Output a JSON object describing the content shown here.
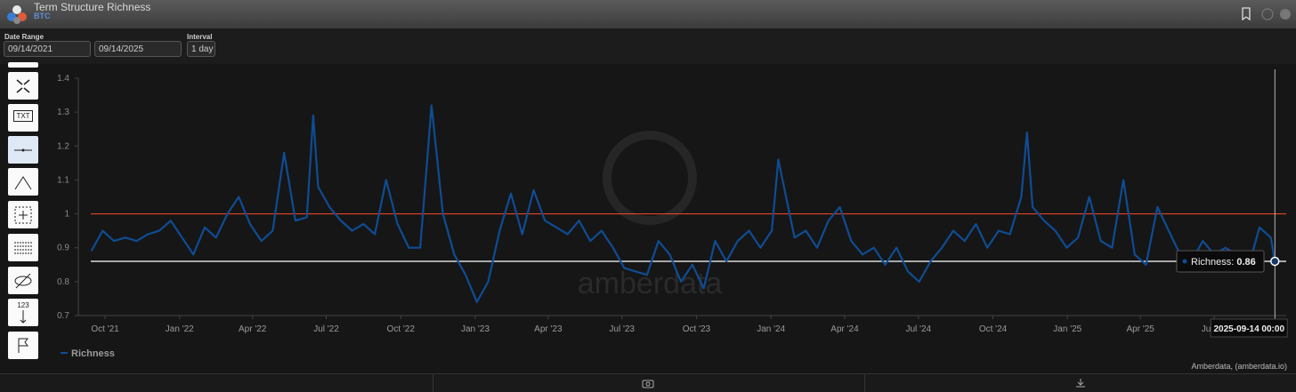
{
  "header": {
    "title": "Term Structure Richness",
    "subtitle": "BTC"
  },
  "controls": {
    "date_range_label": "Date Range",
    "start_date": "09/14/2021",
    "end_date": "09/14/2025",
    "interval_label": "Interval",
    "interval": "1 day"
  },
  "toolbar": {
    "text_tool": "TXT",
    "number_tool": "123"
  },
  "chart_data": {
    "type": "line",
    "x": [
      "2021-09-14",
      "2021-09-28",
      "2021-10-12",
      "2021-10-26",
      "2021-11-09",
      "2021-11-23",
      "2021-12-07",
      "2021-12-21",
      "2022-01-04",
      "2022-01-18",
      "2022-02-01",
      "2022-02-15",
      "2022-03-01",
      "2022-03-15",
      "2022-03-29",
      "2022-04-12",
      "2022-04-26",
      "2022-05-10",
      "2022-05-24",
      "2022-06-07",
      "2022-06-15",
      "2022-06-21",
      "2022-07-05",
      "2022-07-19",
      "2022-08-02",
      "2022-08-16",
      "2022-08-30",
      "2022-09-13",
      "2022-09-27",
      "2022-10-11",
      "2022-10-25",
      "2022-11-08",
      "2022-11-22",
      "2022-12-06",
      "2022-12-20",
      "2023-01-03",
      "2023-01-17",
      "2023-01-31",
      "2023-02-14",
      "2023-02-28",
      "2023-03-14",
      "2023-03-28",
      "2023-04-11",
      "2023-04-25",
      "2023-05-09",
      "2023-05-23",
      "2023-06-06",
      "2023-06-20",
      "2023-07-04",
      "2023-07-18",
      "2023-08-01",
      "2023-08-15",
      "2023-08-29",
      "2023-09-12",
      "2023-09-26",
      "2023-10-10",
      "2023-10-24",
      "2023-11-07",
      "2023-11-21",
      "2023-12-05",
      "2023-12-19",
      "2024-01-02",
      "2024-01-10",
      "2024-01-30",
      "2024-02-13",
      "2024-02-27",
      "2024-03-12",
      "2024-03-26",
      "2024-04-09",
      "2024-04-23",
      "2024-05-07",
      "2024-05-21",
      "2024-06-04",
      "2024-06-18",
      "2024-07-02",
      "2024-07-16",
      "2024-07-30",
      "2024-08-13",
      "2024-08-27",
      "2024-09-10",
      "2024-09-24",
      "2024-10-08",
      "2024-10-22",
      "2024-11-05",
      "2024-11-12",
      "2024-11-19",
      "2024-12-03",
      "2024-12-17",
      "2024-12-31",
      "2025-01-14",
      "2025-01-28",
      "2025-02-11",
      "2025-02-25",
      "2025-03-11",
      "2025-03-25",
      "2025-04-08",
      "2025-04-22",
      "2025-05-06",
      "2025-05-20",
      "2025-06-03",
      "2025-06-17",
      "2025-07-01",
      "2025-07-15",
      "2025-07-29",
      "2025-08-12",
      "2025-08-26",
      "2025-09-09",
      "2025-09-14"
    ],
    "series": [
      {
        "name": "Richness",
        "color": "#0f4c94",
        "values": [
          0.89,
          0.95,
          0.92,
          0.93,
          0.92,
          0.94,
          0.95,
          0.98,
          0.93,
          0.88,
          0.96,
          0.93,
          1.0,
          1.05,
          0.97,
          0.92,
          0.95,
          1.18,
          0.98,
          0.99,
          1.29,
          1.08,
          1.02,
          0.98,
          0.95,
          0.97,
          0.94,
          1.1,
          0.97,
          0.9,
          0.9,
          1.32,
          1.0,
          0.88,
          0.82,
          0.74,
          0.8,
          0.95,
          1.06,
          0.94,
          1.07,
          0.98,
          0.96,
          0.94,
          0.98,
          0.92,
          0.95,
          0.9,
          0.84,
          0.83,
          0.82,
          0.92,
          0.88,
          0.8,
          0.85,
          0.78,
          0.92,
          0.86,
          0.92,
          0.95,
          0.9,
          0.95,
          1.16,
          0.93,
          0.95,
          0.9,
          0.98,
          1.02,
          0.92,
          0.88,
          0.9,
          0.85,
          0.9,
          0.83,
          0.8,
          0.86,
          0.9,
          0.95,
          0.92,
          0.97,
          0.9,
          0.95,
          0.94,
          1.05,
          1.24,
          1.02,
          0.98,
          0.95,
          0.9,
          0.93,
          1.05,
          0.92,
          0.9,
          1.1,
          0.88,
          0.85,
          1.02,
          0.95,
          0.88,
          0.86,
          0.92,
          0.88,
          0.9,
          0.88,
          0.84,
          0.96,
          0.93,
          0.86
        ]
      }
    ],
    "xlim": [
      "2021-08-29",
      "2025-09-28"
    ],
    "xticks": [
      {
        "value": "2021-10-01",
        "label": "Oct '21"
      },
      {
        "value": "2022-01-01",
        "label": "Jan '22"
      },
      {
        "value": "2022-04-01",
        "label": "Apr '22"
      },
      {
        "value": "2022-07-01",
        "label": "Jul '22"
      },
      {
        "value": "2022-10-01",
        "label": "Oct '22"
      },
      {
        "value": "2023-01-01",
        "label": "Jan '23"
      },
      {
        "value": "2023-04-01",
        "label": "Apr '23"
      },
      {
        "value": "2023-07-01",
        "label": "Jul '23"
      },
      {
        "value": "2023-10-01",
        "label": "Oct '23"
      },
      {
        "value": "2024-01-01",
        "label": "Jan '24"
      },
      {
        "value": "2024-04-01",
        "label": "Apr '24"
      },
      {
        "value": "2024-07-01",
        "label": "Jul '24"
      },
      {
        "value": "2024-10-01",
        "label": "Oct '24"
      },
      {
        "value": "2025-01-01",
        "label": "Jan '25"
      },
      {
        "value": "2025-04-01",
        "label": "Apr '25"
      },
      {
        "value": "2025-07-01",
        "label": "Jul '25"
      }
    ],
    "ylim": [
      0.7,
      1.4
    ],
    "yticks": [
      0.7,
      0.8,
      0.9,
      1,
      1.1,
      1.2,
      1.3,
      1.4
    ],
    "hlines": [
      {
        "value": 1,
        "color": "#e2432a"
      },
      {
        "value": 0.86,
        "color": "#ffffff"
      }
    ],
    "tooltip_label": "Richness:",
    "crosshair_label": "2025-09-14 00:00",
    "watermark": "amberdata",
    "credit": "Amberdata, (amberdata.io)",
    "legend": true
  }
}
